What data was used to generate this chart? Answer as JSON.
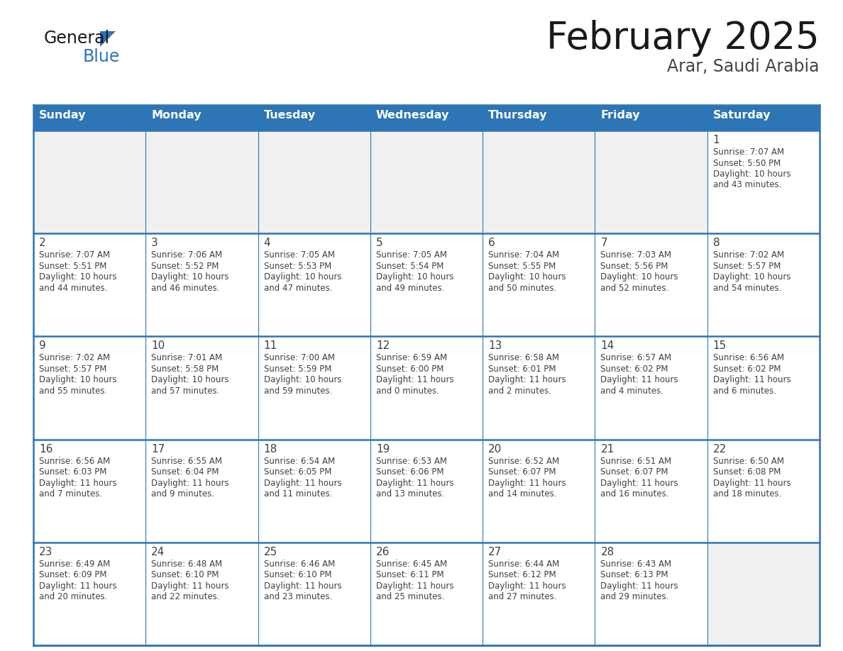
{
  "title": "February 2025",
  "subtitle": "Arar, Saudi Arabia",
  "days_of_week": [
    "Sunday",
    "Monday",
    "Tuesday",
    "Wednesday",
    "Thursday",
    "Friday",
    "Saturday"
  ],
  "header_bg": "#2E75B6",
  "header_text_color": "#FFFFFF",
  "cell_bg_light": "#F0F0F0",
  "cell_bg_white": "#FFFFFF",
  "grid_line_color": "#2E75B6",
  "text_color": "#404040",
  "calendar_data": [
    [
      null,
      null,
      null,
      null,
      null,
      null,
      {
        "day": "1",
        "sunrise": "7:07 AM",
        "sunset": "5:50 PM",
        "daylight_h": "10 hours",
        "daylight_m": "and 43 minutes."
      }
    ],
    [
      {
        "day": "2",
        "sunrise": "7:07 AM",
        "sunset": "5:51 PM",
        "daylight_h": "10 hours",
        "daylight_m": "and 44 minutes."
      },
      {
        "day": "3",
        "sunrise": "7:06 AM",
        "sunset": "5:52 PM",
        "daylight_h": "10 hours",
        "daylight_m": "and 46 minutes."
      },
      {
        "day": "4",
        "sunrise": "7:05 AM",
        "sunset": "5:53 PM",
        "daylight_h": "10 hours",
        "daylight_m": "and 47 minutes."
      },
      {
        "day": "5",
        "sunrise": "7:05 AM",
        "sunset": "5:54 PM",
        "daylight_h": "10 hours",
        "daylight_m": "and 49 minutes."
      },
      {
        "day": "6",
        "sunrise": "7:04 AM",
        "sunset": "5:55 PM",
        "daylight_h": "10 hours",
        "daylight_m": "and 50 minutes."
      },
      {
        "day": "7",
        "sunrise": "7:03 AM",
        "sunset": "5:56 PM",
        "daylight_h": "10 hours",
        "daylight_m": "and 52 minutes."
      },
      {
        "day": "8",
        "sunrise": "7:02 AM",
        "sunset": "5:57 PM",
        "daylight_h": "10 hours",
        "daylight_m": "and 54 minutes."
      }
    ],
    [
      {
        "day": "9",
        "sunrise": "7:02 AM",
        "sunset": "5:57 PM",
        "daylight_h": "10 hours",
        "daylight_m": "and 55 minutes."
      },
      {
        "day": "10",
        "sunrise": "7:01 AM",
        "sunset": "5:58 PM",
        "daylight_h": "10 hours",
        "daylight_m": "and 57 minutes."
      },
      {
        "day": "11",
        "sunrise": "7:00 AM",
        "sunset": "5:59 PM",
        "daylight_h": "10 hours",
        "daylight_m": "and 59 minutes."
      },
      {
        "day": "12",
        "sunrise": "6:59 AM",
        "sunset": "6:00 PM",
        "daylight_h": "11 hours",
        "daylight_m": "and 0 minutes."
      },
      {
        "day": "13",
        "sunrise": "6:58 AM",
        "sunset": "6:01 PM",
        "daylight_h": "11 hours",
        "daylight_m": "and 2 minutes."
      },
      {
        "day": "14",
        "sunrise": "6:57 AM",
        "sunset": "6:02 PM",
        "daylight_h": "11 hours",
        "daylight_m": "and 4 minutes."
      },
      {
        "day": "15",
        "sunrise": "6:56 AM",
        "sunset": "6:02 PM",
        "daylight_h": "11 hours",
        "daylight_m": "and 6 minutes."
      }
    ],
    [
      {
        "day": "16",
        "sunrise": "6:56 AM",
        "sunset": "6:03 PM",
        "daylight_h": "11 hours",
        "daylight_m": "and 7 minutes."
      },
      {
        "day": "17",
        "sunrise": "6:55 AM",
        "sunset": "6:04 PM",
        "daylight_h": "11 hours",
        "daylight_m": "and 9 minutes."
      },
      {
        "day": "18",
        "sunrise": "6:54 AM",
        "sunset": "6:05 PM",
        "daylight_h": "11 hours",
        "daylight_m": "and 11 minutes."
      },
      {
        "day": "19",
        "sunrise": "6:53 AM",
        "sunset": "6:06 PM",
        "daylight_h": "11 hours",
        "daylight_m": "and 13 minutes."
      },
      {
        "day": "20",
        "sunrise": "6:52 AM",
        "sunset": "6:07 PM",
        "daylight_h": "11 hours",
        "daylight_m": "and 14 minutes."
      },
      {
        "day": "21",
        "sunrise": "6:51 AM",
        "sunset": "6:07 PM",
        "daylight_h": "11 hours",
        "daylight_m": "and 16 minutes."
      },
      {
        "day": "22",
        "sunrise": "6:50 AM",
        "sunset": "6:08 PM",
        "daylight_h": "11 hours",
        "daylight_m": "and 18 minutes."
      }
    ],
    [
      {
        "day": "23",
        "sunrise": "6:49 AM",
        "sunset": "6:09 PM",
        "daylight_h": "11 hours",
        "daylight_m": "and 20 minutes."
      },
      {
        "day": "24",
        "sunrise": "6:48 AM",
        "sunset": "6:10 PM",
        "daylight_h": "11 hours",
        "daylight_m": "and 22 minutes."
      },
      {
        "day": "25",
        "sunrise": "6:46 AM",
        "sunset": "6:10 PM",
        "daylight_h": "11 hours",
        "daylight_m": "and 23 minutes."
      },
      {
        "day": "26",
        "sunrise": "6:45 AM",
        "sunset": "6:11 PM",
        "daylight_h": "11 hours",
        "daylight_m": "and 25 minutes."
      },
      {
        "day": "27",
        "sunrise": "6:44 AM",
        "sunset": "6:12 PM",
        "daylight_h": "11 hours",
        "daylight_m": "and 27 minutes."
      },
      {
        "day": "28",
        "sunrise": "6:43 AM",
        "sunset": "6:13 PM",
        "daylight_h": "11 hours",
        "daylight_m": "and 29 minutes."
      },
      null
    ]
  ]
}
